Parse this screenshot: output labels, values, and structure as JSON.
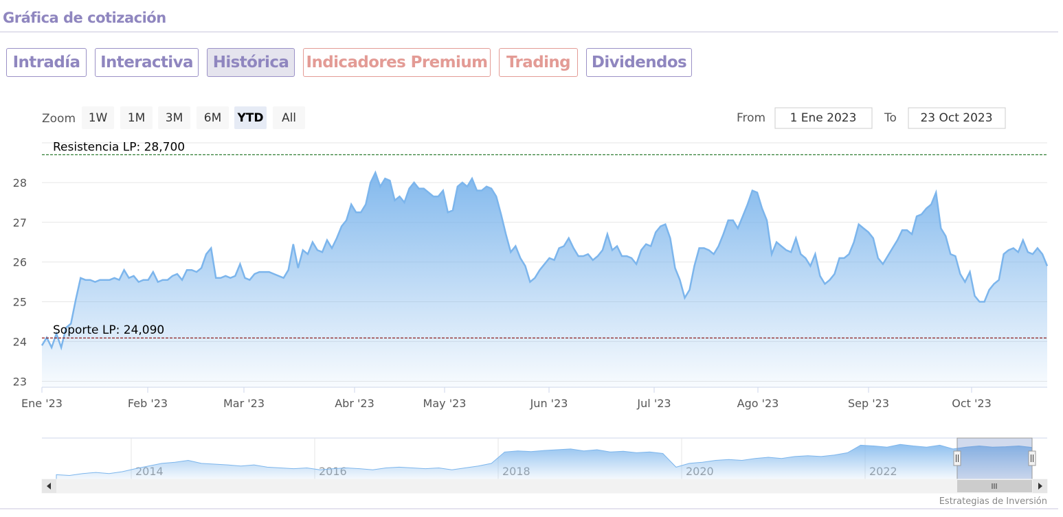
{
  "header": {
    "title": "Gráfica de cotización"
  },
  "tabs": [
    {
      "label": "Intradía",
      "style": "normal"
    },
    {
      "label": "Interactiva",
      "style": "normal"
    },
    {
      "label": "Histórica",
      "style": "active"
    },
    {
      "label": "Indicadores Premium",
      "style": "premium"
    },
    {
      "label": "Trading",
      "style": "premium"
    },
    {
      "label": "Dividendos",
      "style": "normal"
    }
  ],
  "zoom": {
    "label": "Zoom",
    "buttons": [
      "1W",
      "1M",
      "3M",
      "6M",
      "YTD",
      "All"
    ],
    "selected": "YTD"
  },
  "range": {
    "from_label": "From",
    "from_value": "1 Ene 2023",
    "to_label": "To",
    "to_value": "23 Oct 2023"
  },
  "credits": "Estrategias de Inversión",
  "colors": {
    "line": "#7cb5ec",
    "resistance": "#2e7d32",
    "support": "#8b1a1a",
    "brand": "#8f86bf",
    "premium": "#e39b95"
  },
  "chart_data": {
    "type": "area",
    "series": [
      {
        "values": [
          23.9,
          24.1,
          23.85,
          24.2,
          23.85,
          24.35,
          24.45,
          25.05,
          25.6,
          25.55,
          25.55,
          25.5,
          25.55,
          25.55,
          25.55,
          25.6,
          25.55,
          25.8,
          25.6,
          25.65,
          25.5,
          25.55,
          25.55,
          25.75,
          25.5,
          25.55,
          25.55,
          25.65,
          25.7,
          25.55,
          25.8,
          25.8,
          25.75,
          25.85,
          26.2,
          26.35,
          25.6,
          25.6,
          25.65,
          25.6,
          25.65,
          25.95,
          25.6,
          25.55,
          25.7,
          25.75,
          25.75,
          25.75,
          25.7,
          25.65,
          25.6,
          25.8,
          26.45,
          25.85,
          26.3,
          26.2,
          26.5,
          26.3,
          26.25,
          26.55,
          26.35,
          26.6,
          26.9,
          27.05,
          27.45,
          27.25,
          27.25,
          27.45,
          28.0,
          28.25,
          27.9,
          28.1,
          28.05,
          27.55,
          27.65,
          27.5,
          27.85,
          28.0,
          27.85,
          27.85,
          27.75,
          27.65,
          27.65,
          27.8,
          27.25,
          27.3,
          27.9,
          28.0,
          27.9,
          28.1,
          27.8,
          27.8,
          27.9,
          27.85,
          27.65,
          27.2,
          26.7,
          26.25,
          26.4,
          26.1,
          25.9,
          25.5,
          25.6,
          25.8,
          25.95,
          26.1,
          26.05,
          26.35,
          26.4,
          26.6,
          26.35,
          26.15,
          26.15,
          26.2,
          26.05,
          26.15,
          26.3,
          26.7,
          26.3,
          26.4,
          26.15,
          26.15,
          26.1,
          25.95,
          26.3,
          26.45,
          26.4,
          26.75,
          26.9,
          26.95,
          26.6,
          25.85,
          25.55,
          25.1,
          25.3,
          25.9,
          26.35,
          26.35,
          26.3,
          26.2,
          26.4,
          26.7,
          27.05,
          27.05,
          26.85,
          27.15,
          27.45,
          27.8,
          27.75,
          27.35,
          27.05,
          26.2,
          26.5,
          26.4,
          26.3,
          26.25,
          26.6,
          26.2,
          26.1,
          25.9,
          26.2,
          25.65,
          25.45,
          25.55,
          25.7,
          26.1,
          26.1,
          26.2,
          26.5,
          26.95,
          26.85,
          26.75,
          26.6,
          26.1,
          25.95,
          26.15,
          26.35,
          26.55,
          26.8,
          26.8,
          26.7,
          27.15,
          27.2,
          27.35,
          27.45,
          27.75,
          26.85,
          26.65,
          26.2,
          26.15,
          25.7,
          25.5,
          25.75,
          25.15,
          25.0,
          25.0,
          25.3,
          25.45,
          25.55,
          26.2,
          26.3,
          26.35,
          26.25,
          26.55,
          26.25,
          26.2,
          26.35,
          26.2,
          25.9
        ]
      }
    ],
    "x_labels": [
      "Ene '23",
      "Feb '23",
      "Mar '23",
      "Abr '23",
      "May '23",
      "Jun '23",
      "Jul '23",
      "Ago '23",
      "Sep '23",
      "Oct '23"
    ],
    "y_ticks": [
      23,
      24,
      25,
      26,
      27,
      28
    ],
    "ylim": [
      22.85,
      29.0
    ],
    "plot_lines": [
      {
        "label": "Resistencia LP: 28,700",
        "value": 28.7
      },
      {
        "label": "Soporte LP: 24,090",
        "value": 24.09
      }
    ],
    "navigator": {
      "x_labels": [
        "2014",
        "2016",
        "2018",
        "2020",
        "2022"
      ],
      "values": [
        0.12,
        0.1,
        0.15,
        0.18,
        0.15,
        0.2,
        0.28,
        0.35,
        0.42,
        0.45,
        0.5,
        0.42,
        0.4,
        0.38,
        0.35,
        0.38,
        0.32,
        0.3,
        0.28,
        0.3,
        0.25,
        0.28,
        0.3,
        0.28,
        0.25,
        0.3,
        0.32,
        0.3,
        0.28,
        0.3,
        0.25,
        0.3,
        0.35,
        0.42,
        0.72,
        0.75,
        0.73,
        0.76,
        0.78,
        0.8,
        0.75,
        0.78,
        0.72,
        0.74,
        0.7,
        0.72,
        0.68,
        0.32,
        0.42,
        0.45,
        0.5,
        0.52,
        0.5,
        0.55,
        0.58,
        0.55,
        0.6,
        0.62,
        0.6,
        0.64,
        0.7,
        0.9,
        0.88,
        0.85,
        0.92,
        0.88,
        0.85,
        0.9,
        0.8,
        0.85,
        0.88,
        0.85,
        0.86,
        0.88,
        0.84
      ],
      "selected_range": "YTD"
    },
    "grid": true,
    "legend": "none"
  }
}
